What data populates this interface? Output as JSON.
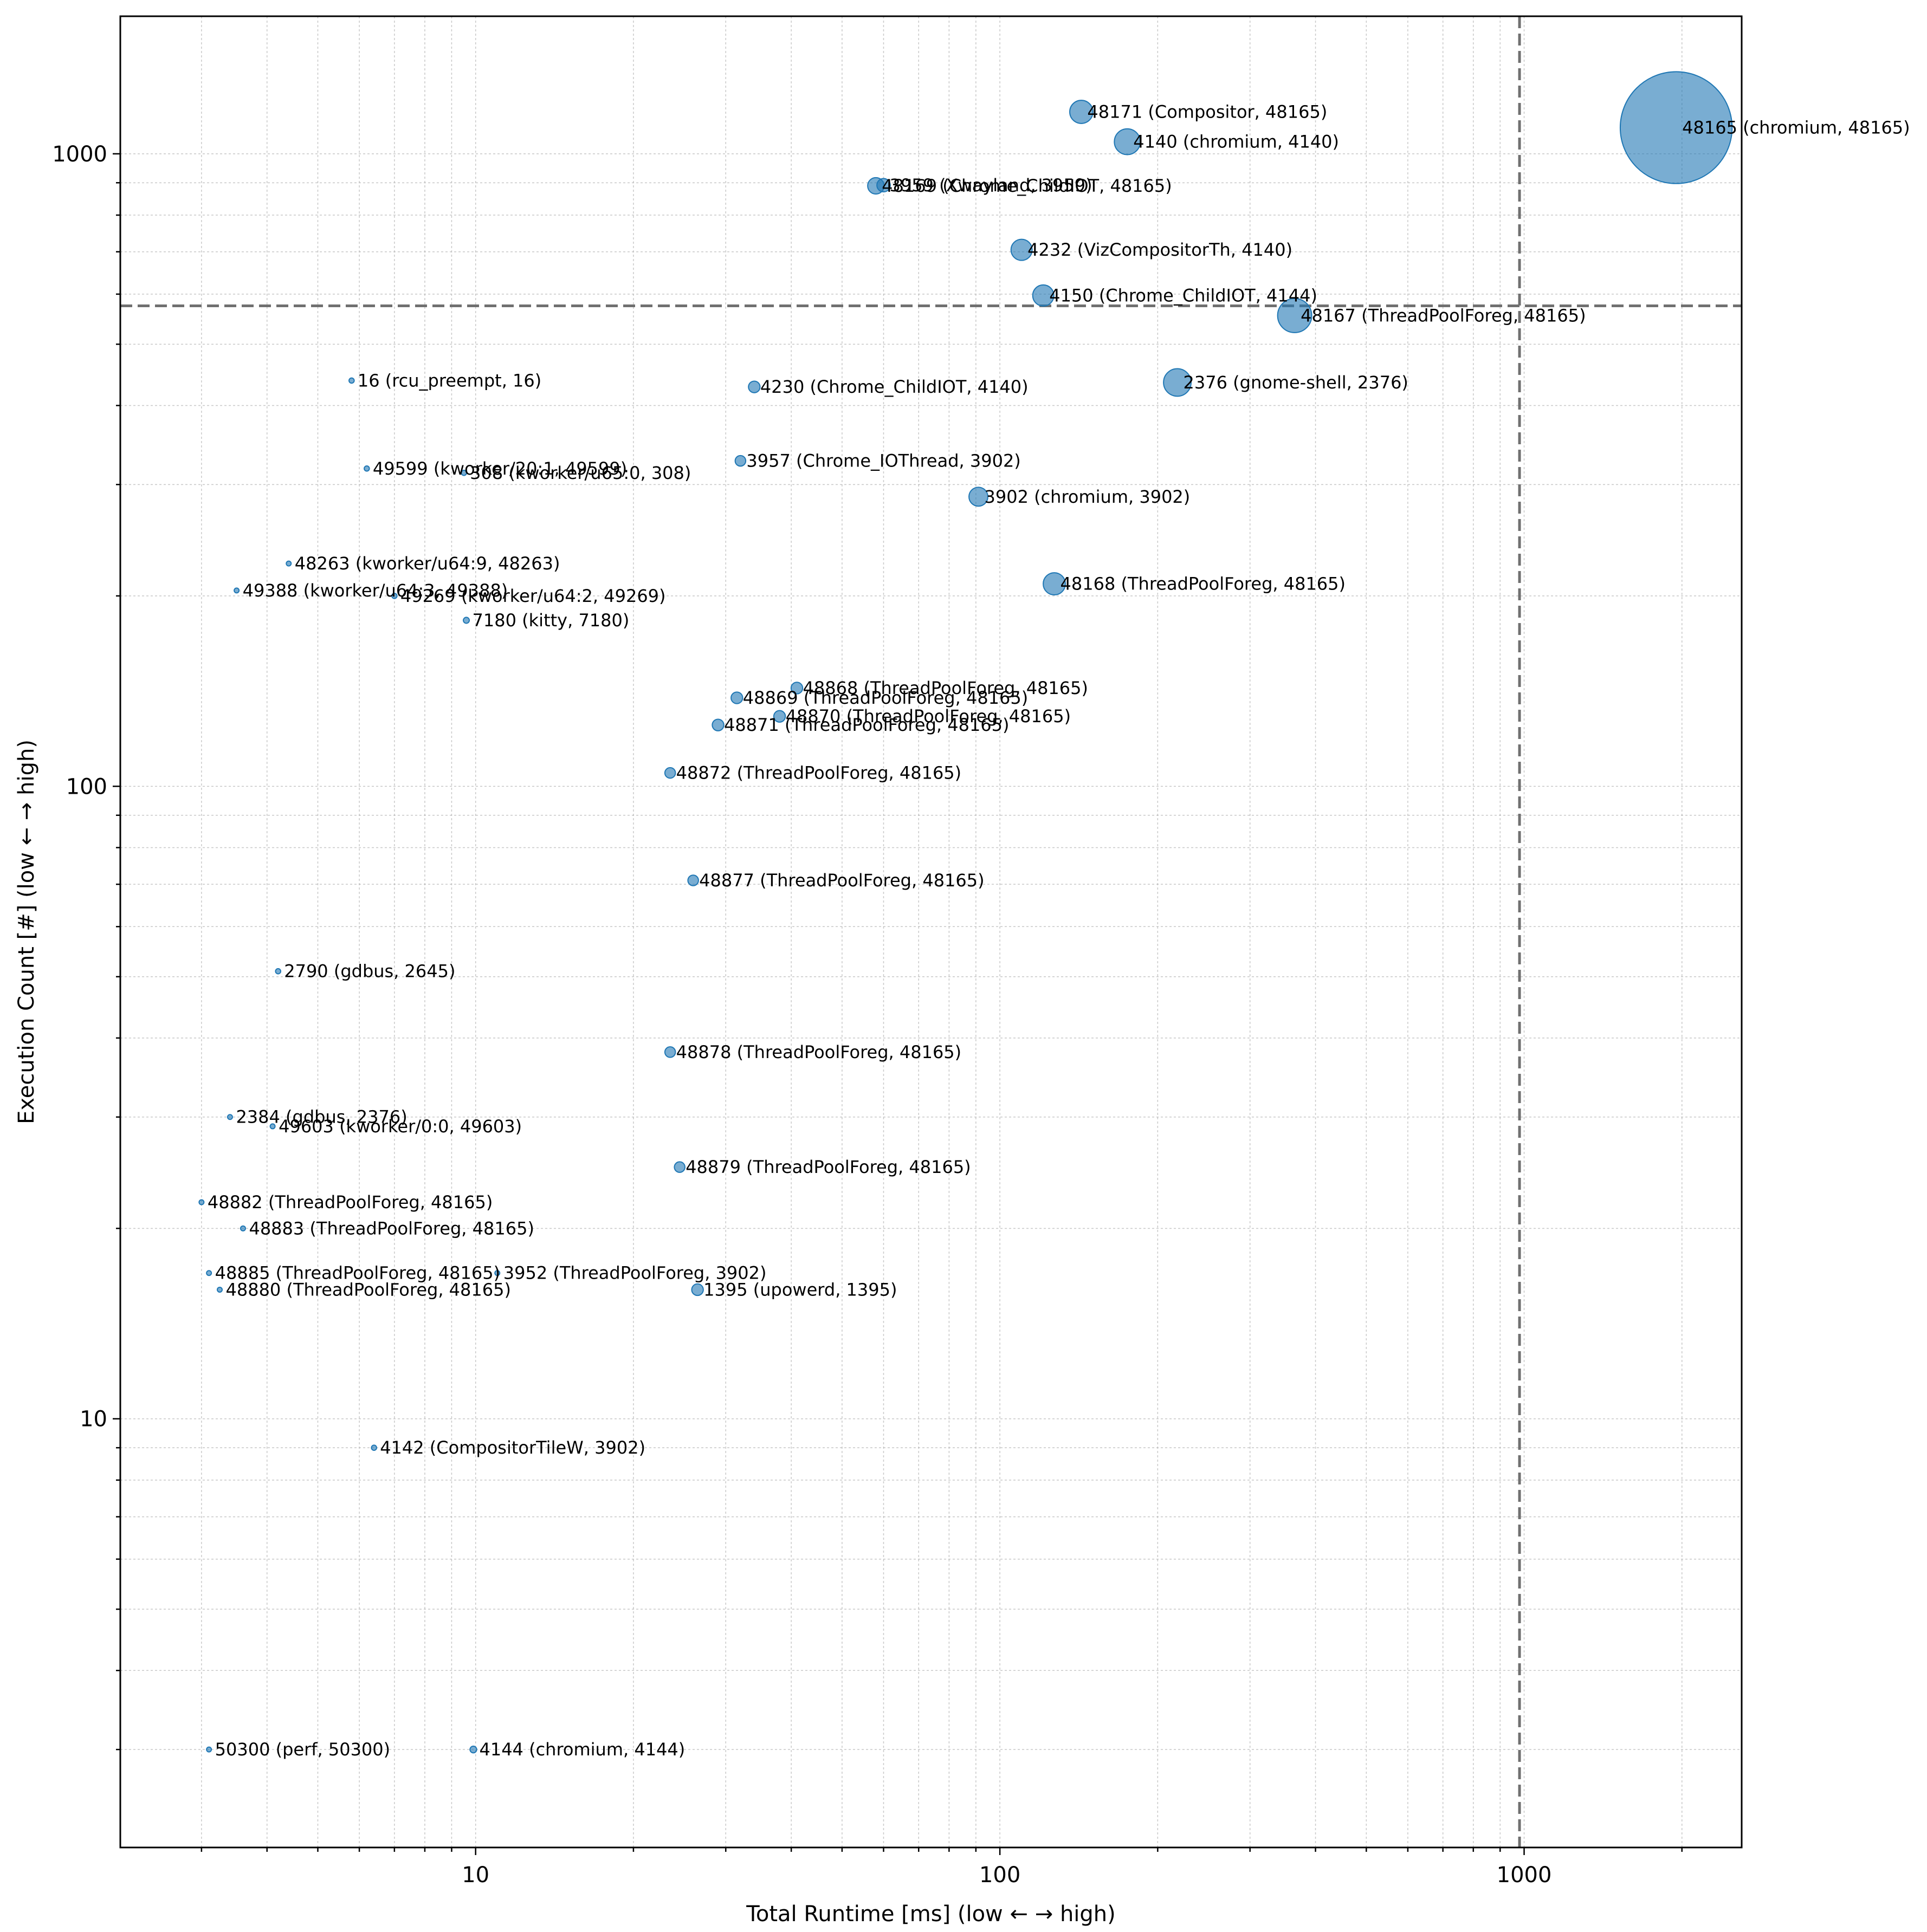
{
  "chart_data": {
    "type": "scatter",
    "xlabel": "Total Runtime [ms] (low ← → high)",
    "ylabel": "Execution Count [#] (low ← → high)",
    "x_scale": "log",
    "y_scale": "log",
    "xlim": [
      2.1,
      2600
    ],
    "ylim": [
      2.1,
      1650
    ],
    "grid": true,
    "x_ticks": [
      {
        "value": 10,
        "label": "10"
      },
      {
        "value": 100,
        "label": "100"
      },
      {
        "value": 1000,
        "label": "1000"
      }
    ],
    "y_ticks": [
      {
        "value": 10,
        "label": "10"
      },
      {
        "value": 100,
        "label": "100"
      },
      {
        "value": 1000,
        "label": "1000"
      }
    ],
    "reference_lines": {
      "x": 980,
      "y": 575
    },
    "marker_color": "#1f77b4",
    "reference_line_color": "#707070",
    "points": [
      {
        "label": "48165 (chromium, 48165)",
        "x": 1950,
        "y": 1100,
        "size": 2800
      },
      {
        "label": "48171 (Compositor, 48165)",
        "x": 143,
        "y": 1165,
        "size": 120
      },
      {
        "label": "4140 (chromium, 4140)",
        "x": 175,
        "y": 1045,
        "size": 150
      },
      {
        "label": "48169 (Chrome_ChildIOT, 48165)",
        "x": 58,
        "y": 890,
        "size": 60
      },
      {
        "label": "3959 (Xwayland, 3959)",
        "x": 60,
        "y": 892,
        "size": 40
      },
      {
        "label": "4232 (VizCompositorTh, 4140)",
        "x": 110,
        "y": 705,
        "size": 100
      },
      {
        "label": "4150 (Chrome_ChildIOT, 4144)",
        "x": 121,
        "y": 597,
        "size": 100
      },
      {
        "label": "48167 (ThreadPoolForeg, 48165)",
        "x": 365,
        "y": 555,
        "size": 260
      },
      {
        "label": "2376 (gnome-shell, 2376)",
        "x": 218,
        "y": 435,
        "size": 170
      },
      {
        "label": "16 (rcu_preempt, 16)",
        "x": 5.8,
        "y": 438,
        "size": 6
      },
      {
        "label": "4230 (Chrome_ChildIOT, 4140)",
        "x": 34,
        "y": 428,
        "size": 30
      },
      {
        "label": "3957 (Chrome_IOThread, 3902)",
        "x": 32,
        "y": 327,
        "size": 25
      },
      {
        "label": "49599 (kworker/20:1, 49599)",
        "x": 6.2,
        "y": 318,
        "size": 6
      },
      {
        "label": "308 (kworker/u65:0, 308)",
        "x": 9.5,
        "y": 313,
        "size": 6
      },
      {
        "label": "3902 (chromium, 3902)",
        "x": 91,
        "y": 287,
        "size": 80
      },
      {
        "label": "48263 (kworker/u64:9, 48263)",
        "x": 4.4,
        "y": 225,
        "size": 5
      },
      {
        "label": "48168 (ThreadPoolForeg, 48165)",
        "x": 127,
        "y": 209,
        "size": 110
      },
      {
        "label": "49388 (kworker/u64:3, 49388)",
        "x": 3.5,
        "y": 204,
        "size": 5
      },
      {
        "label": "49269 (kworker/u64:2, 49269)",
        "x": 7.0,
        "y": 200,
        "size": 6
      },
      {
        "label": "7180 (kitty, 7180)",
        "x": 9.6,
        "y": 183,
        "size": 8
      },
      {
        "label": "48868 (ThreadPoolForeg, 48165)",
        "x": 41,
        "y": 143,
        "size": 30
      },
      {
        "label": "48869 (ThreadPoolForeg, 48165)",
        "x": 31.5,
        "y": 138,
        "size": 30
      },
      {
        "label": "48870 (ThreadPoolForeg, 48165)",
        "x": 38,
        "y": 129,
        "size": 30
      },
      {
        "label": "48871 (ThreadPoolForeg, 48165)",
        "x": 29,
        "y": 125,
        "size": 30
      },
      {
        "label": "48872 (ThreadPoolForeg, 48165)",
        "x": 23.5,
        "y": 105,
        "size": 25
      },
      {
        "label": "48877 (ThreadPoolForeg, 48165)",
        "x": 26,
        "y": 71,
        "size": 25
      },
      {
        "label": "2790 (gdbus, 2645)",
        "x": 4.2,
        "y": 51,
        "size": 6
      },
      {
        "label": "48878 (ThreadPoolForeg, 48165)",
        "x": 23.5,
        "y": 38,
        "size": 25
      },
      {
        "label": "2384 (gdbus, 2376)",
        "x": 3.4,
        "y": 30,
        "size": 5
      },
      {
        "label": "49603 (kworker/0:0, 49603)",
        "x": 4.1,
        "y": 29,
        "size": 5
      },
      {
        "label": "48879 (ThreadPoolForeg, 48165)",
        "x": 24.5,
        "y": 25,
        "size": 25
      },
      {
        "label": "48882 (ThreadPoolForeg, 48165)",
        "x": 3.0,
        "y": 22,
        "size": 4
      },
      {
        "label": "48883 (ThreadPoolForeg, 48165)",
        "x": 3.6,
        "y": 20,
        "size": 4
      },
      {
        "label": "48885 (ThreadPoolForeg, 48165)",
        "x": 3.1,
        "y": 17,
        "size": 4
      },
      {
        "label": "3952 (ThreadPoolForeg, 3902)",
        "x": 11,
        "y": 17,
        "size": 4
      },
      {
        "label": "48880 (ThreadPoolForeg, 48165)",
        "x": 3.25,
        "y": 16,
        "size": 4
      },
      {
        "label": "1395 (upowerd, 1395)",
        "x": 26.5,
        "y": 16,
        "size": 30
      },
      {
        "label": "4142 (CompositorTileW, 3902)",
        "x": 6.4,
        "y": 9.0,
        "size": 6
      },
      {
        "label": "50300 (perf, 50300)",
        "x": 3.1,
        "y": 3.0,
        "size": 4
      },
      {
        "label": "4144 (chromium, 4144)",
        "x": 9.9,
        "y": 3.0,
        "size": 10
      }
    ]
  }
}
